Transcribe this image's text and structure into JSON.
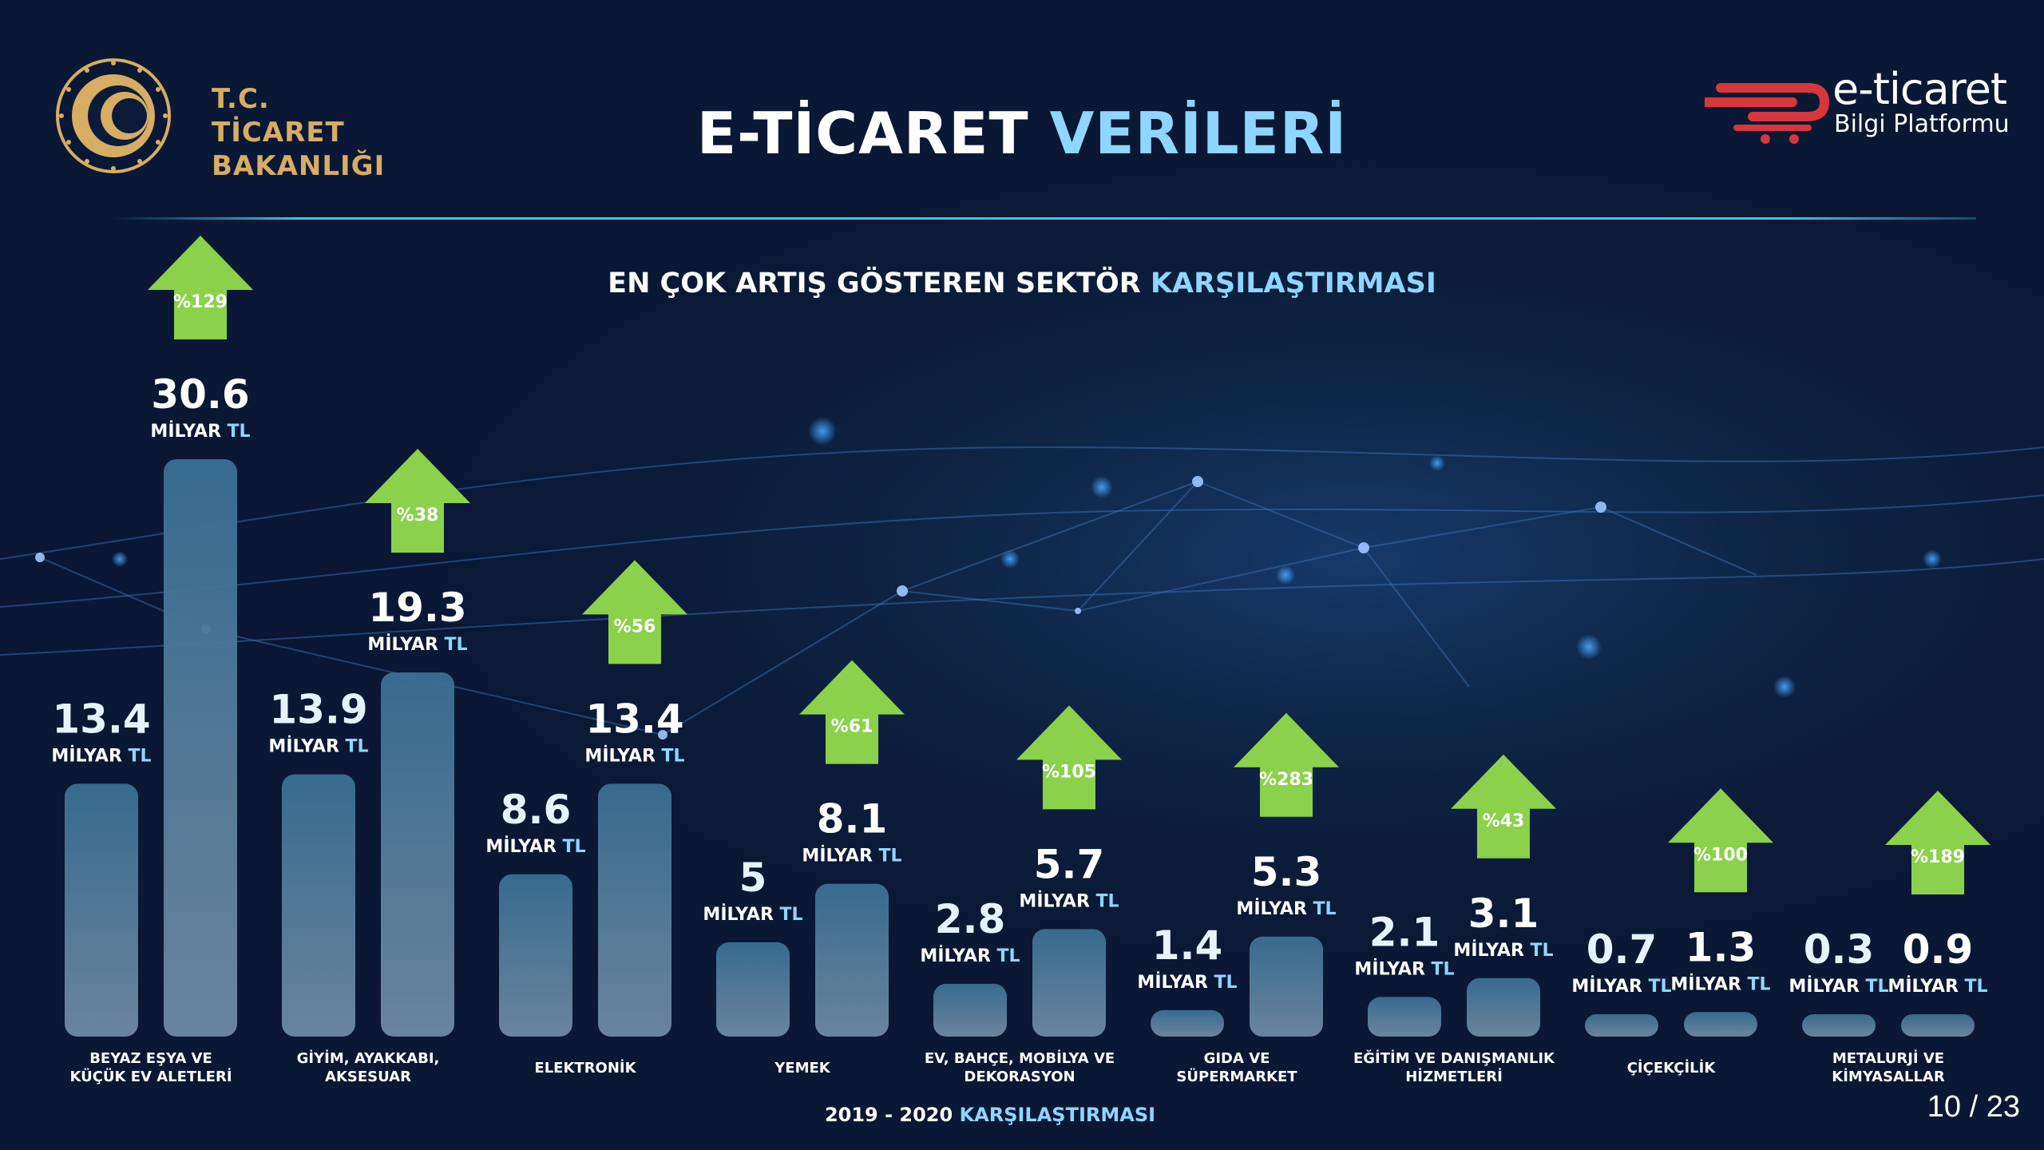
{
  "header": {
    "logo_left_line1": "T.C. TİCARET",
    "logo_left_line2": "BAKANLIĞI",
    "title_part1": "E-TİCARET ",
    "title_part2": "VERİLERİ",
    "logo_right_line1": "e-ticaret",
    "logo_right_line2": "Bilgi Platformu"
  },
  "subtitle_part1": "EN ÇOK ARTIŞ GÖSTEREN SEKTÖR ",
  "subtitle_part2": "KARŞILAŞTIRMASI",
  "footer_part1": "2019 - 2020 ",
  "footer_part2": "KARŞILAŞTIRMASI",
  "page_number": "10 / 23",
  "colors": {
    "background": "#0b1c3a",
    "accent": "#8fd6ff",
    "arrow": "#8bd14b",
    "bar_top": "#3a6f94",
    "bar_bottom": "#6f8aa3",
    "logo_gold": "#d7ad63",
    "brand_red": "#d7363c"
  },
  "chart_data": {
    "type": "bar",
    "unit_label": "MİLYAR TL",
    "ylim": [
      0,
      32
    ],
    "categories": [
      [
        "BEYAZ EŞYA VE",
        "KÜÇÜK EV ALETLERİ"
      ],
      [
        "GİYİM, AYAKKABI,",
        "AKSESUAR"
      ],
      [
        "ELEKTRONİK"
      ],
      [
        "YEMEK"
      ],
      [
        "EV, BAHÇE, MOBİLYA VE",
        "DEKORASYON"
      ],
      [
        "GIDA VE",
        "SÜPERMARKET"
      ],
      [
        "EĞİTİM VE DANIŞMANLIK",
        "HİZMETLERİ"
      ],
      [
        "ÇİÇEKÇİLİK"
      ],
      [
        "METALURJİ VE",
        "KİMYASALLAR"
      ]
    ],
    "series": [
      {
        "name": "2019",
        "values": [
          13.4,
          13.9,
          8.6,
          5,
          2.8,
          1.4,
          2.1,
          0.7,
          0.3
        ]
      },
      {
        "name": "2020",
        "values": [
          30.6,
          19.3,
          13.4,
          8.1,
          5.7,
          5.3,
          3.1,
          1.3,
          0.9
        ]
      }
    ],
    "value_labels": {
      "2019": [
        "13.4",
        "13.9",
        "8.6",
        "5",
        "2.8",
        "1.4",
        "2.1",
        "0.7",
        "0.3"
      ],
      "2020": [
        "30.6",
        "19.3",
        "13.4",
        "8.1",
        "5.7",
        "5.3",
        "3.1",
        "1.3",
        "0.9"
      ]
    },
    "growth_pct": [
      "%129",
      "%38",
      "%56",
      "%61",
      "%105",
      "%283",
      "%43",
      "%100",
      "%189"
    ]
  }
}
